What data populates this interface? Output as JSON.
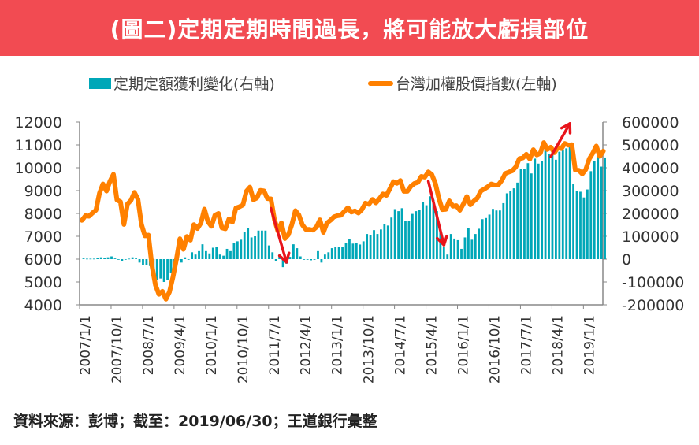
{
  "title": "(圖二)定期定期時間過長，將可能放大虧損部位",
  "source": "資料來源：彭博；截至：2019/06/30；王道銀行彙整",
  "chart_data": {
    "type": "bar+line",
    "legend": {
      "placement": "top"
    },
    "grid": false,
    "colors": {
      "bars": "#00A7B8",
      "line": "#FF8000",
      "arrows": "#E8141B",
      "title_bg": "#F24B52"
    },
    "x_tick_labels": [
      "2007/1/1",
      "2007/10/1",
      "2008/7/1",
      "2009/4/1",
      "2010/1/1",
      "2010/10/1",
      "2011/7/1",
      "2012/4/1",
      "2013/1/1",
      "2013/10/1",
      "2014/7/1",
      "2015/4/1",
      "2016/1/1",
      "2016/10/1",
      "2017/7/1",
      "2018/4/1",
      "2019/1/1"
    ],
    "x_range": [
      "2007/1",
      "2019/6"
    ],
    "left_axis": {
      "ylim": [
        4000,
        12000
      ],
      "ticks": [
        "4000",
        "5000",
        "6000",
        "7000",
        "8000",
        "9000",
        "10000",
        "11000",
        "12000"
      ]
    },
    "right_axis": {
      "ylim": [
        -200000,
        600000
      ],
      "ticks": [
        "-200000",
        "-100000",
        "0",
        "100000",
        "200000",
        "300000",
        "400000",
        "500000",
        "600000"
      ]
    },
    "series": [
      {
        "name": "定期定額獲利變化(右軸)",
        "type": "bar",
        "axis": "right",
        "values": [
          3000,
          2000,
          2000,
          2000,
          4000,
          8000,
          5000,
          8000,
          12000,
          3000,
          -2000,
          -10000,
          -2000,
          2000,
          8000,
          3000,
          -15000,
          -25000,
          -25000,
          -30000,
          -60000,
          -90000,
          -85000,
          -100000,
          -90000,
          -60000,
          -20000,
          0,
          -15000,
          8000,
          -2000,
          30000,
          20000,
          35000,
          65000,
          35000,
          25000,
          50000,
          55000,
          20000,
          15000,
          45000,
          35000,
          70000,
          78000,
          85000,
          120000,
          135000,
          95000,
          100000,
          125000,
          125000,
          125000,
          60000,
          30000,
          -8000,
          20000,
          -35000,
          -20000,
          10000,
          65000,
          48000,
          12000,
          0,
          0,
          -5000,
          0,
          35000,
          -15000,
          20000,
          30000,
          48000,
          52000,
          55000,
          54000,
          70000,
          88000,
          68000,
          70000,
          64000,
          78000,
          110000,
          105000,
          127000,
          110000,
          130000,
          154000,
          147000,
          182000,
          219000,
          210000,
          223000,
          167000,
          167000,
          198000,
          210000,
          216000,
          250000,
          236000,
          275000,
          260000,
          210000,
          123000,
          55000,
          20000,
          110000,
          90000,
          83000,
          45000,
          95000,
          135000,
          85000,
          110000,
          133000,
          175000,
          180000,
          195000,
          220000,
          213000,
          213000,
          245000,
          288000,
          300000,
          310000,
          335000,
          393000,
          395000,
          420000,
          375000,
          440000,
          418000,
          430000,
          480000,
          460000,
          475000,
          435000,
          470000,
          480000,
          485000,
          490000,
          330000,
          300000,
          295000,
          270000,
          305000,
          385000,
          430000,
          470000,
          405000,
          445000
        ]
      },
      {
        "name": "台灣加權股價指數(左軸)",
        "type": "line",
        "axis": "left",
        "values": [
          7700,
          7900,
          7880,
          8020,
          8145,
          8880,
          9290,
          8980,
          9410,
          9710,
          8590,
          8510,
          7520,
          8410,
          8570,
          8920,
          8620,
          7520,
          7020,
          7050,
          5720,
          4870,
          4460,
          4590,
          4250,
          4560,
          5210,
          5990,
          6890,
          6430,
          6990,
          6830,
          7510,
          7340,
          7580,
          8190,
          7640,
          7440,
          7920,
          8000,
          7370,
          7330,
          7760,
          7620,
          8240,
          8290,
          8370,
          8970,
          9150,
          8600,
          8680,
          9010,
          8990,
          8650,
          8640,
          7740,
          7230,
          7590,
          6900,
          7070,
          7520,
          8120,
          7930,
          7500,
          7300,
          7300,
          7270,
          7400,
          7720,
          7170,
          7580,
          7700,
          7850,
          7900,
          7920,
          8090,
          8250,
          8060,
          8110,
          8020,
          8170,
          8450,
          8400,
          8610,
          8460,
          8640,
          8850,
          8790,
          9080,
          9390,
          9320,
          9440,
          8970,
          8970,
          9190,
          9310,
          9360,
          9620,
          9590,
          9820,
          9700,
          9320,
          8660,
          8170,
          8180,
          8550,
          8320,
          8340,
          8140,
          8410,
          8740,
          8380,
          8540,
          8670,
          8980,
          9070,
          9170,
          9290,
          9240,
          9250,
          9450,
          9750,
          9810,
          9870,
          10040,
          10400,
          10430,
          10590,
          10380,
          10790,
          10560,
          10640,
          11100,
          10800,
          10900,
          10660,
          10880,
          10840,
          11060,
          10990,
          11010,
          9900,
          9890,
          9730,
          9930,
          10390,
          10640,
          10950,
          10500,
          10730
        ]
      }
    ],
    "annotations": [
      {
        "type": "arrow",
        "from": "2011/7",
        "to": "2011/11"
      },
      {
        "type": "arrow",
        "from": "2015/4",
        "to": "2015/8"
      },
      {
        "type": "arrow",
        "from": "2018/3",
        "to": "2018/8"
      }
    ]
  }
}
